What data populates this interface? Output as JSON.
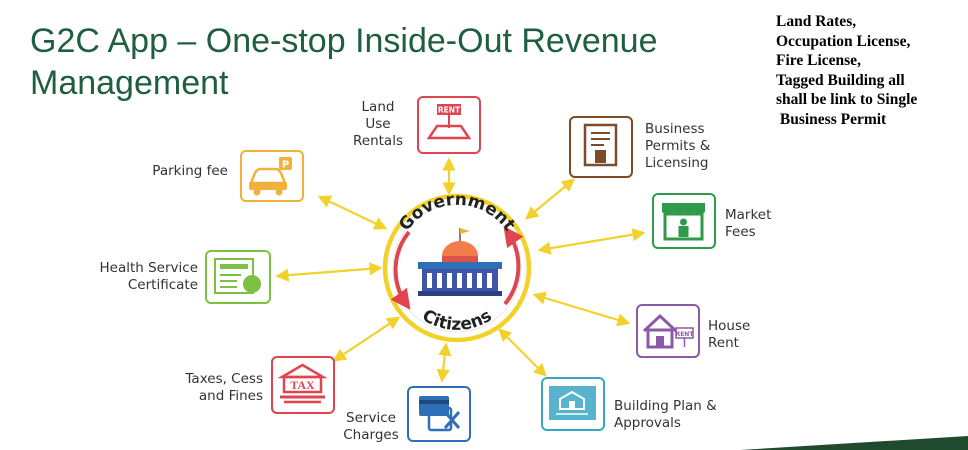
{
  "slide": {
    "title": "G2C App – One-stop Inside-Out Revenue Management",
    "title_line1": "G2C App – One-stop Inside-Out Revenue",
    "title_line2": "Management",
    "note": "Land Rates,\nOccupation License,\nFire License,\nTagged Building all\nshall be link to Single\n Business Permit"
  },
  "hub": {
    "top_text": "Government",
    "bottom_text": "Citizens"
  },
  "services": [
    {
      "id": "land-use-rentals",
      "label": "Land\nUse\nRentals",
      "icon": "rent-land-icon",
      "color": "#e0454f",
      "sign": "RENT"
    },
    {
      "id": "business-permits",
      "label": "Business\nPermits &\nLicensing",
      "icon": "certificate-icon",
      "color": "#7b4b2a"
    },
    {
      "id": "market-fees",
      "label": "Market\nFees",
      "icon": "market-stall-icon",
      "color": "#2e9a4a"
    },
    {
      "id": "house-rent",
      "label": "House\nRent",
      "icon": "house-rent-icon",
      "color": "#8a5aa8",
      "sign": "RENT"
    },
    {
      "id": "building-plan",
      "label": "Building Plan &\nApprovals",
      "icon": "blueprint-icon",
      "color": "#3aa6c6"
    },
    {
      "id": "service-charges",
      "label": "Service\nCharges",
      "icon": "service-tools-icon",
      "color": "#2f6fb5"
    },
    {
      "id": "taxes",
      "label": "Taxes, Cess\nand Fines",
      "icon": "tax-building-icon",
      "color": "#e0454f",
      "sign": "TAX"
    },
    {
      "id": "health-cert",
      "label": "Health Service\nCertificate",
      "icon": "health-certificate-icon",
      "color": "#7cc144"
    },
    {
      "id": "parking-fee",
      "label": "Parking fee",
      "icon": "parking-car-icon",
      "color": "#f2b13a",
      "sign": "P"
    }
  ],
  "colors": {
    "title": "#1f5f3f",
    "arrow": "#f2d22a",
    "hub_ring": "#f2d22a",
    "hub_arrows": "#e0454f",
    "footer_bar": "#1f4a2e"
  }
}
